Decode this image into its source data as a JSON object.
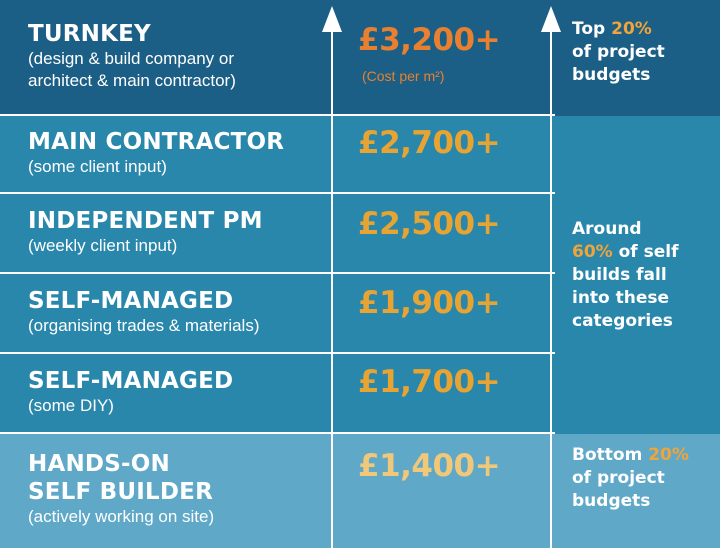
{
  "colors": {
    "top_band": "#1c5f86",
    "mid_band": "#2987ab",
    "bottom_band": "#5fa8c8",
    "price_orange": "#e8802f",
    "price_gold": "#e7a433",
    "price_light": "#f1c77a"
  },
  "rows": [
    {
      "title": "TURNKEY",
      "subtitle_lines": [
        "(design & build company or",
        "architect & main contractor)"
      ],
      "price": "£3,200+"
    },
    {
      "title": "MAIN CONTRACTOR",
      "subtitle_lines": [
        "(some client input)"
      ],
      "price": "£2,700+"
    },
    {
      "title": "INDEPENDENT PM",
      "subtitle_lines": [
        "(weekly client input)"
      ],
      "price": "£2,500+"
    },
    {
      "title": "SELF-MANAGED",
      "subtitle_lines": [
        "(organising trades & materials)"
      ],
      "price": "£1,900+"
    },
    {
      "title": "SELF-MANAGED",
      "subtitle_lines": [
        "(some DIY)"
      ],
      "price": "£1,700+"
    },
    {
      "title_lines": [
        "HANDS-ON",
        "SELF BUILDER"
      ],
      "subtitle_lines": [
        "(actively working on site)"
      ],
      "price": "£1,400+"
    }
  ],
  "unit_label": "(Cost per m²)",
  "notes": {
    "top": {
      "pre": "Top ",
      "highlight": "20%",
      "line2": "of project",
      "line3": "budgets"
    },
    "middle": {
      "line1": "Around",
      "highlight": "60%",
      "rest1": " of self",
      "line3": "builds fall",
      "line4": "into these",
      "line5": "categories"
    },
    "bottom": {
      "pre": "Bottom ",
      "highlight": "20%",
      "line2": "of project",
      "line3": "budgets"
    }
  },
  "icons": {
    "arrow_left": "up-arrow-icon",
    "arrow_right": "up-arrow-icon"
  }
}
